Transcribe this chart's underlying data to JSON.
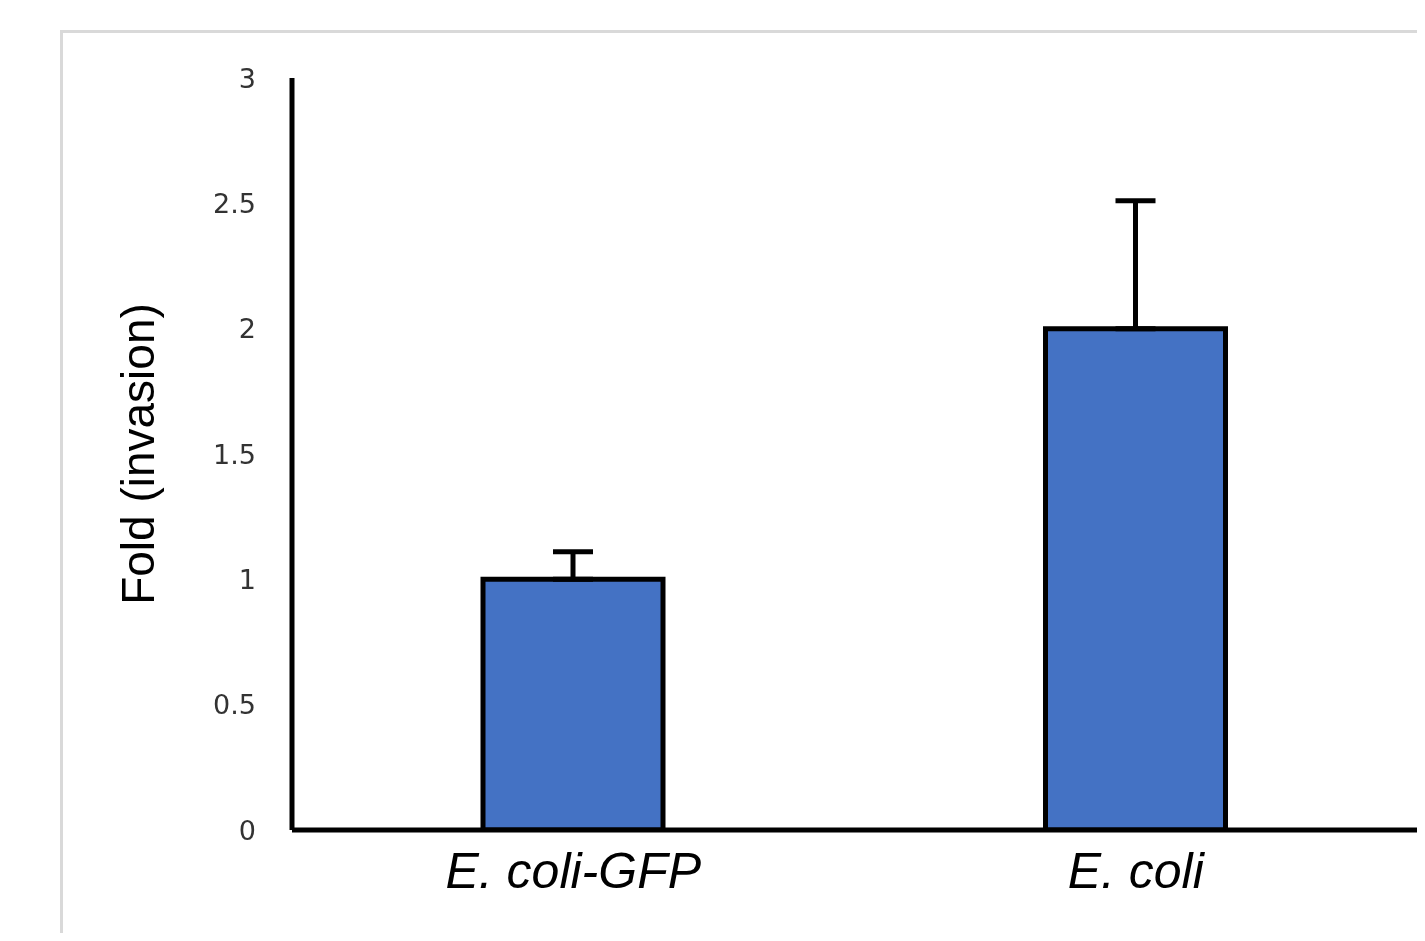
{
  "chart_data": {
    "type": "bar",
    "ylabel": "Fold (invasion)",
    "categories": [
      "E. coli-GFP",
      "E. coli"
    ],
    "values": [
      1,
      2
    ],
    "errors": [
      [
        1,
        1.11
      ],
      [
        2,
        2.51
      ]
    ],
    "color": "#4472c4",
    "ylim": [
      0,
      3
    ],
    "yticks": [
      0,
      0.5,
      1,
      1.5,
      2,
      2.5,
      3
    ],
    "grid": false,
    "legend": false
  }
}
